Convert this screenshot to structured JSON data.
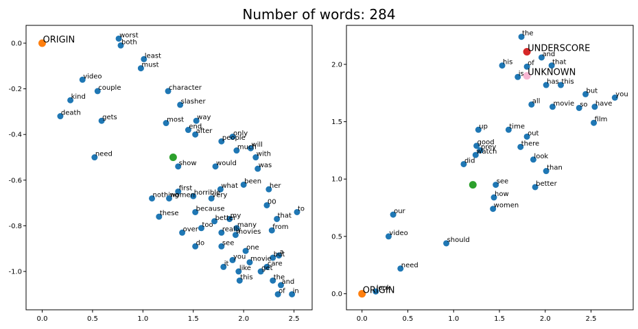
{
  "title": "Number of words: 284",
  "chart_data": [
    {
      "type": "scatter",
      "xlim": [
        -0.16,
        2.68
      ],
      "ylim": [
        -1.168,
        0.078
      ],
      "xticks": [
        {
          "value": 0,
          "label": "0.0"
        },
        0.5,
        {
          "value": 1,
          "label": "1.0"
        },
        1.5,
        {
          "value": 2,
          "label": "2.0"
        },
        2.5
      ],
      "yticks": [
        {
          "value": 0,
          "label": "0.0"
        },
        -0.2,
        -0.4,
        -0.6,
        -0.8,
        {
          "value": -1,
          "label": "-1.0"
        }
      ],
      "points": {
        "color": "#1f77b4",
        "labels": [
          "worst",
          "both",
          "least",
          "must",
          "video",
          "kind",
          "couple",
          "character",
          "death",
          "gets",
          "slasher",
          "way",
          "most",
          "end",
          "after",
          "only",
          "people",
          "need",
          "will",
          "much",
          "with",
          "was",
          "show",
          "would",
          "her",
          "been",
          "what",
          "first",
          "horrible",
          "nothing",
          "women",
          "these",
          "very",
          "00",
          "to",
          "because",
          "that",
          "my",
          "better",
          "from",
          "many",
          "over",
          "too",
          "movies",
          "really",
          "do",
          "see",
          "one",
          "a",
          "you",
          "but",
          "it",
          "movie",
          "care",
          "like",
          "get",
          "this",
          "the",
          "and",
          "of",
          "in"
        ],
        "x": [
          0.76,
          0.78,
          1.01,
          0.98,
          0.4,
          0.28,
          0.55,
          1.25,
          0.18,
          0.59,
          1.37,
          1.53,
          1.23,
          1.45,
          1.52,
          1.89,
          1.78,
          0.52,
          2.07,
          1.93,
          2.12,
          2.14,
          1.35,
          1.72,
          2.25,
          2.0,
          1.77,
          1.35,
          1.5,
          1.09,
          1.26,
          1.16,
          1.68,
          2.23,
          2.53,
          1.52,
          2.33,
          1.86,
          1.71,
          2.28,
          1.93,
          1.39,
          1.58,
          1.92,
          1.78,
          1.52,
          1.78,
          2.02,
          2.35,
          1.89,
          2.29,
          1.8,
          2.06,
          2.23,
          1.95,
          2.17,
          1.96,
          2.29,
          2.37,
          2.34,
          2.48
        ],
        "y": [
          0.02,
          -0.01,
          -0.07,
          -0.11,
          -0.16,
          -0.25,
          -0.21,
          -0.21,
          -0.32,
          -0.34,
          -0.27,
          -0.34,
          -0.35,
          -0.38,
          -0.4,
          -0.41,
          -0.43,
          -0.5,
          -0.46,
          -0.47,
          -0.5,
          -0.55,
          -0.54,
          -0.54,
          -0.64,
          -0.62,
          -0.64,
          -0.65,
          -0.67,
          -0.68,
          -0.68,
          -0.76,
          -0.68,
          -0.71,
          -0.74,
          -0.74,
          -0.77,
          -0.77,
          -0.78,
          -0.82,
          -0.81,
          -0.83,
          -0.81,
          -0.84,
          -0.83,
          -0.89,
          -0.89,
          -0.91,
          -0.93,
          -0.95,
          -0.94,
          -0.98,
          -0.96,
          -0.98,
          -1.0,
          -1.0,
          -1.04,
          -1.04,
          -1.06,
          -1.1,
          -1.1
        ]
      },
      "highlights": [
        {
          "label": "ORIGIN",
          "x": 0,
          "y": 0,
          "color": "#ff7f0e"
        },
        {
          "x": 1.3,
          "y": -0.5,
          "color": "#2ca02c"
        }
      ]
    },
    {
      "type": "scatter",
      "xlim": [
        -0.17,
        2.96
      ],
      "ylim": [
        -0.14,
        2.34
      ],
      "xticks": [
        {
          "value": 0,
          "label": "0.0"
        },
        0.5,
        {
          "value": 1,
          "label": "1.0"
        },
        1.5,
        {
          "value": 2,
          "label": "2.0"
        },
        2.5
      ],
      "yticks": [
        {
          "value": 0,
          "label": "0.0"
        },
        0.5,
        {
          "value": 1,
          "label": "1.0"
        },
        1.5,
        {
          "value": 2,
          "label": "2.0"
        }
      ],
      "points": {
        "color": "#1f77b4",
        "labels": [
          "the",
          "his",
          "is",
          "of",
          "and",
          "that",
          "has",
          "this",
          "you",
          "but",
          "have",
          "all",
          "movie",
          "so",
          "film",
          "up",
          "prey",
          "watch",
          "good",
          "time",
          "there",
          "out",
          "look",
          "than",
          "better",
          "did",
          "see",
          "how",
          "women",
          "should",
          "our",
          "video",
          "need",
          "look"
        ],
        "x": [
          1.74,
          1.53,
          1.7,
          1.8,
          1.96,
          2.07,
          2.01,
          2.17,
          2.76,
          2.44,
          2.54,
          1.85,
          2.08,
          2.37,
          2.53,
          1.27,
          1.29,
          1.24,
          1.25,
          1.6,
          1.73,
          1.8,
          1.87,
          2.01,
          1.89,
          1.11,
          1.46,
          1.44,
          1.43,
          0.92,
          0.34,
          0.29,
          0.42,
          0.15
        ],
        "y": [
          2.24,
          1.99,
          1.89,
          1.98,
          2.06,
          1.99,
          1.82,
          1.82,
          1.71,
          1.74,
          1.63,
          1.65,
          1.63,
          1.62,
          1.49,
          1.43,
          1.25,
          1.21,
          1.29,
          1.43,
          1.28,
          1.37,
          1.17,
          1.07,
          0.93,
          1.13,
          0.95,
          0.84,
          0.74,
          0.44,
          0.69,
          0.5,
          0.22,
          0.02
        ]
      },
      "highlights": [
        {
          "label": "ORIGIN",
          "x": 0,
          "y": 0,
          "color": "#ff7f0e"
        },
        {
          "label": "UNDERSCORE",
          "x": 1.8,
          "y": 2.11,
          "color": "#d62728"
        },
        {
          "label": "UNKNOWN",
          "x": 1.8,
          "y": 1.9,
          "color": "#f7b6d2"
        },
        {
          "x": 1.21,
          "y": 0.95,
          "color": "#2ca02c"
        }
      ]
    }
  ]
}
